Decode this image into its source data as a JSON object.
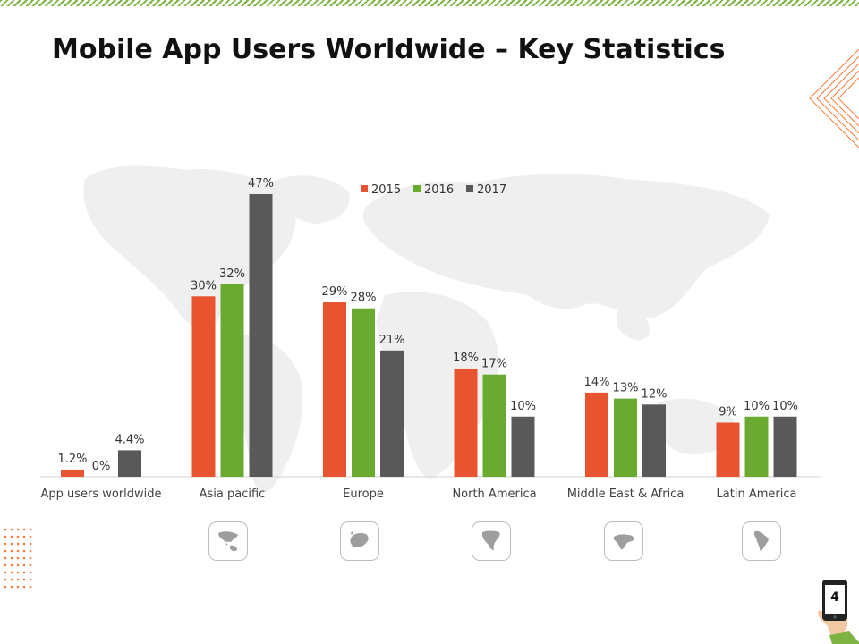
{
  "slide": {
    "title": "Mobile App Users Worldwide – Key Statistics",
    "page_number": "4"
  },
  "colors": {
    "s2015": "#e8542f",
    "s2016": "#6aaa30",
    "s2017": "#595959",
    "accent_green": "#7cb342",
    "accent_orange": "#f47c3c"
  },
  "icons": [
    {
      "name": "asia-pacific-map-icon"
    },
    {
      "name": "europe-map-icon"
    },
    {
      "name": "north-america-map-icon"
    },
    {
      "name": "middle-east-africa-map-icon"
    },
    {
      "name": "latin-america-map-icon"
    }
  ],
  "chart_data": {
    "type": "bar",
    "categories": [
      "App users worldwide",
      "Asia pacific",
      "Europe",
      "North America",
      "Middle East & Africa",
      "Latin America"
    ],
    "series": [
      {
        "name": "2015",
        "values": [
          1.2,
          30,
          29,
          18,
          14,
          9
        ],
        "labels": [
          "1.2%",
          "30%",
          "29%",
          "18%",
          "14%",
          "9%"
        ]
      },
      {
        "name": "2016",
        "values": [
          0,
          32,
          28,
          17,
          13,
          10
        ],
        "labels": [
          "0%",
          "32%",
          "28%",
          "17%",
          "13%",
          "10%"
        ]
      },
      {
        "name": "2017",
        "values": [
          4.4,
          47,
          21,
          10,
          12,
          10
        ],
        "labels": [
          "4.4%",
          "47%",
          "21%",
          "10%",
          "12%",
          "10%"
        ]
      }
    ],
    "ylim": [
      0,
      47
    ],
    "legend": "top-center",
    "grid": false,
    "title": "",
    "xlabel": "",
    "ylabel": ""
  }
}
